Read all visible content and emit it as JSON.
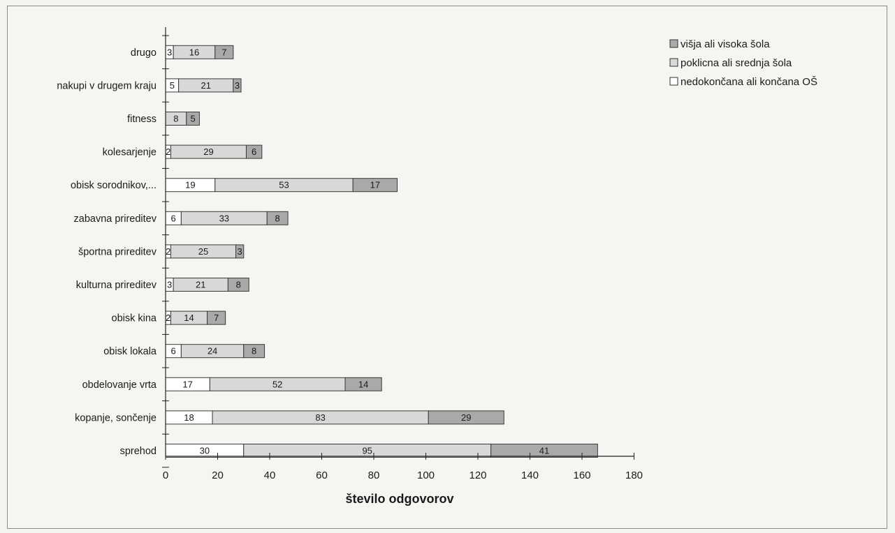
{
  "chart_data": {
    "type": "bar",
    "orientation": "horizontal",
    "stacked": true,
    "title": "",
    "xlabel": "število odgovorov",
    "ylabel": "",
    "xlim": [
      0,
      180
    ],
    "xticks": [
      0,
      20,
      40,
      60,
      80,
      100,
      120,
      140,
      160,
      180
    ],
    "grid": false,
    "legend_position": "top-right",
    "categories": [
      "drugo",
      "nakupi v drugem kraju",
      "fitness",
      "kolesarjenje",
      "obisk sorodnikov,...",
      "zabavna prireditev",
      "športna prireditev",
      "kulturna prireditev",
      "obisk kina",
      "obisk lokala",
      "obdelovanje vrta",
      "kopanje, sončenje",
      "sprehod"
    ],
    "series": [
      {
        "name": "nedokončana ali končana OŠ",
        "color": "#ffffff",
        "values": [
          3,
          5,
          0,
          2,
          19,
          6,
          2,
          3,
          2,
          6,
          17,
          18,
          30
        ]
      },
      {
        "name": "poklicna ali srednja šola",
        "color": "#d8d8d8",
        "values": [
          16,
          21,
          8,
          29,
          53,
          33,
          25,
          21,
          14,
          24,
          52,
          83,
          95
        ]
      },
      {
        "name": "višja ali visoka šola",
        "color": "#a9a9a9",
        "values": [
          7,
          3,
          5,
          6,
          17,
          8,
          3,
          8,
          7,
          8,
          14,
          29,
          41
        ]
      }
    ],
    "legend_order": [
      "višja ali visoka šola",
      "poklicna ali srednja šola",
      "nedokončana ali končana OŠ"
    ]
  }
}
